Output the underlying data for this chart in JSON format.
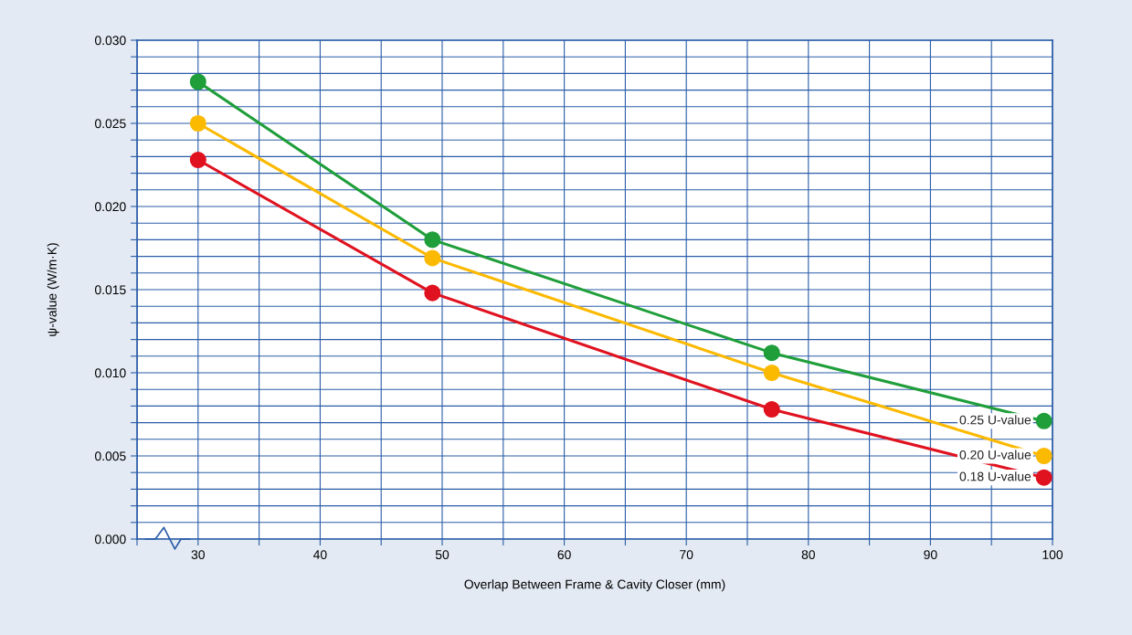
{
  "chart_data": {
    "type": "line",
    "xlabel": "Overlap Between Frame & Cavity Closer (mm)",
    "ylabel": "ψ-value (W/m·K)",
    "xlim": [
      25,
      100
    ],
    "ylim": [
      0,
      0.03
    ],
    "xticks": [
      {
        "value": 25,
        "label": null
      },
      30,
      {
        "value": 35,
        "label": null
      },
      40,
      {
        "value": 45,
        "label": null
      },
      50,
      {
        "value": 55,
        "label": null
      },
      60,
      {
        "value": 65,
        "label": null
      },
      70,
      {
        "value": 75,
        "label": null
      },
      80,
      {
        "value": 85,
        "label": null
      },
      90,
      {
        "value": 95,
        "label": null
      },
      100
    ],
    "yticks": [
      {
        "value": 0,
        "label": "0.000"
      },
      {
        "value": 0.001,
        "label": null
      },
      {
        "value": 0.002,
        "label": null
      },
      {
        "value": 0.003,
        "label": null
      },
      {
        "value": 0.004,
        "label": null
      },
      {
        "value": 0.005,
        "label": "0.005"
      },
      {
        "value": 0.006,
        "label": null
      },
      {
        "value": 0.007,
        "label": null
      },
      {
        "value": 0.008,
        "label": null
      },
      {
        "value": 0.009,
        "label": null
      },
      {
        "value": 0.01,
        "label": "0.010"
      },
      {
        "value": 0.011,
        "label": null
      },
      {
        "value": 0.012,
        "label": null
      },
      {
        "value": 0.013,
        "label": null
      },
      {
        "value": 0.014,
        "label": null
      },
      {
        "value": 0.015,
        "label": "0.015"
      },
      {
        "value": 0.016,
        "label": null
      },
      {
        "value": 0.017,
        "label": null
      },
      {
        "value": 0.018,
        "label": null
      },
      {
        "value": 0.019,
        "label": null
      },
      {
        "value": 0.02,
        "label": "0.020"
      },
      {
        "value": 0.021,
        "label": null
      },
      {
        "value": 0.022,
        "label": null
      },
      {
        "value": 0.023,
        "label": null
      },
      {
        "value": 0.024,
        "label": null
      },
      {
        "value": 0.025,
        "label": "0.025"
      },
      {
        "value": 0.026,
        "label": null
      },
      {
        "value": 0.027,
        "label": null
      },
      {
        "value": 0.028,
        "label": null
      },
      {
        "value": 0.029,
        "label": null
      },
      {
        "value": 0.03,
        "label": "0.030"
      }
    ],
    "grid": true,
    "marker": "circle",
    "line_style": "solid",
    "series": [
      {
        "name": "0.25 U-value",
        "color": "#1f9e3a",
        "x": [
          30,
          49.2,
          77.0,
          99.3
        ],
        "values": [
          0.0275,
          0.018,
          0.0112,
          0.0071
        ]
      },
      {
        "name": "0.20 U-value",
        "color": "#fbb900",
        "x": [
          30,
          49.2,
          77.0,
          99.3
        ],
        "values": [
          0.025,
          0.0169,
          0.01,
          0.005
        ]
      },
      {
        "name": "0.18 U-value",
        "color": "#e0121f",
        "x": [
          30,
          49.2,
          77.0,
          99.3
        ],
        "values": [
          0.0228,
          0.0148,
          0.0078,
          0.0037
        ]
      }
    ]
  }
}
